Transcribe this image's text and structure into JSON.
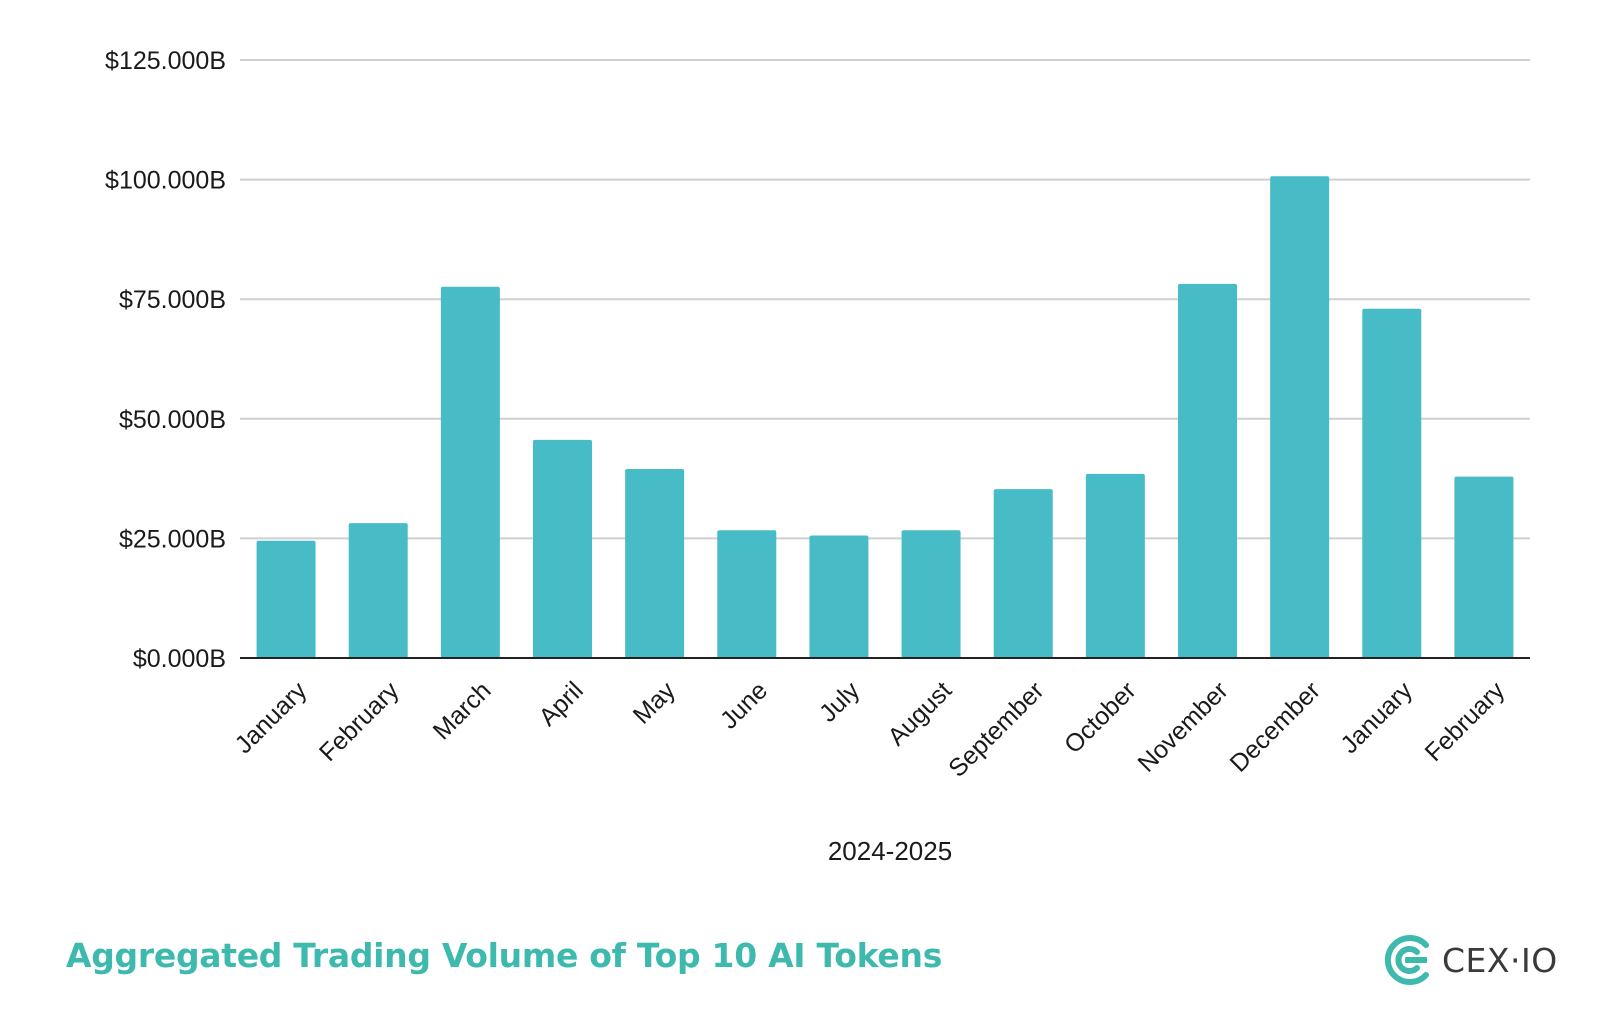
{
  "colors": {
    "bar": "#47BCC6",
    "grid": "#cfcfcf",
    "axis": "#222222",
    "title": "#3DB9AE",
    "logo": "#3DB9AE"
  },
  "footer": {
    "title": "Aggregated Trading Volume of Top 10 AI Tokens"
  },
  "brand": {
    "name": "CEX·IO",
    "icon": "cex-io-logo-icon"
  },
  "chart_data": {
    "type": "bar",
    "title": "",
    "xlabel": "2024-2025",
    "ylabel": "",
    "ylim": [
      0,
      125
    ],
    "yticks": [
      0,
      25,
      50,
      75,
      100,
      125
    ],
    "ytick_labels": [
      "$0.000B",
      "$25.000B",
      "$50.000B",
      "$75.000B",
      "$100.000B",
      "$125.000B"
    ],
    "grid": true,
    "categories": [
      "January",
      "February",
      "March",
      "April",
      "May",
      "June",
      "July",
      "August",
      "September",
      "October",
      "November",
      "December",
      "January",
      "February"
    ],
    "values": [
      24.5,
      28.2,
      77.6,
      45.6,
      39.5,
      26.7,
      25.6,
      26.7,
      35.3,
      38.5,
      78.2,
      100.7,
      73.0,
      37.9
    ],
    "units": "billions USD"
  }
}
